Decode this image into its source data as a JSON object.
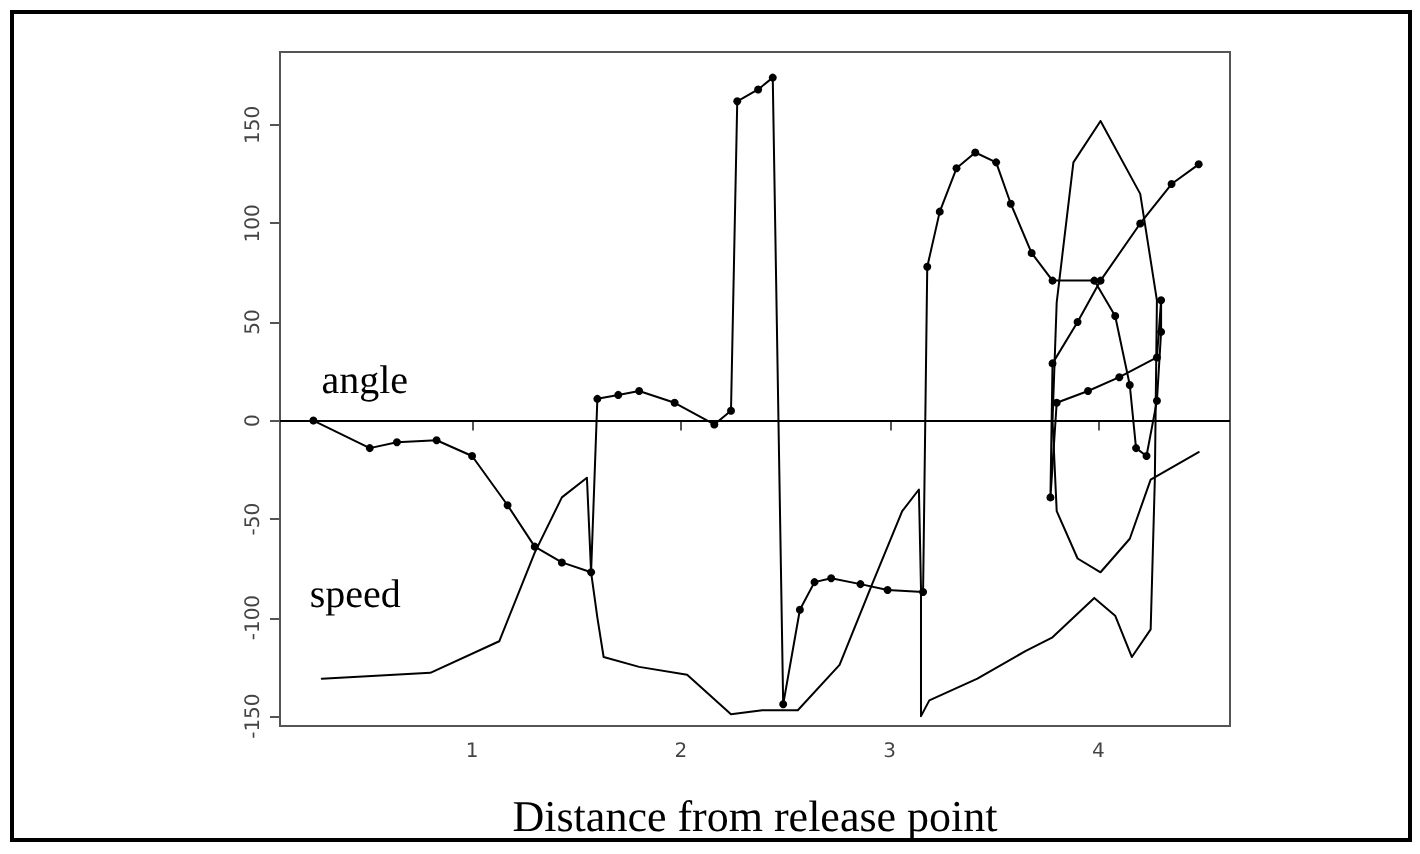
{
  "chart_data": {
    "type": "line",
    "xlabel": "Distance from release point",
    "xlim": [
      0.08,
      4.63
    ],
    "ylim": [
      -155,
      187
    ],
    "xticks": [
      1,
      2,
      3,
      4
    ],
    "yticks": [
      -150,
      -100,
      -50,
      0,
      50,
      100,
      150
    ],
    "grid": false,
    "legend": false,
    "line_style": "solid",
    "ref_lines": [
      {
        "axis": "y",
        "value": 0,
        "label": null,
        "color": "#000000"
      }
    ],
    "series": [
      {
        "name": "angle",
        "color": "#000000",
        "marker": "circle",
        "x": [
          0.24,
          0.51,
          0.64,
          0.83,
          1.0,
          1.17,
          1.3,
          1.43,
          1.57,
          1.6,
          1.7,
          1.8,
          1.97,
          2.16,
          2.24,
          2.27,
          2.37,
          2.44,
          2.49,
          2.57,
          2.64,
          2.72,
          2.86,
          2.99,
          3.16,
          3.18,
          3.24,
          3.32,
          3.41,
          3.51,
          3.58,
          3.68,
          3.78,
          3.98,
          4.08,
          4.15,
          4.18,
          4.23,
          4.28,
          4.3,
          4.3,
          4.28,
          4.1,
          3.95,
          3.8,
          3.77,
          3.78,
          3.9,
          4.01,
          4.2,
          4.35,
          4.48
        ],
        "values": [
          0,
          -14,
          -11,
          -10,
          -18,
          -43,
          -64,
          -72,
          -77,
          11,
          13,
          15,
          9,
          -2,
          5,
          162,
          168,
          174,
          -144,
          -96,
          -82,
          -80,
          -83,
          -86,
          -87,
          78,
          106,
          128,
          136,
          131,
          110,
          85,
          71,
          71,
          53,
          18,
          -14,
          -18,
          10,
          45,
          61,
          32,
          22,
          15,
          9,
          -39,
          29,
          50,
          71,
          100,
          120,
          130
        ]
      },
      {
        "name": "speed",
        "color": "#000000",
        "marker": "none",
        "x": [
          0.28,
          0.8,
          1.13,
          1.3,
          1.43,
          1.55,
          1.57,
          1.6,
          1.63,
          1.8,
          2.03,
          2.24,
          2.39,
          2.56,
          2.76,
          2.92,
          3.06,
          3.14,
          3.15,
          3.15,
          3.19,
          3.42,
          3.65,
          3.78,
          3.98,
          4.08,
          4.16,
          4.25,
          4.27,
          4.28,
          4.2,
          4.01,
          3.88,
          3.8,
          3.78,
          3.8,
          3.9,
          4.01,
          4.15,
          4.25,
          4.48
        ],
        "values": [
          -131,
          -128,
          -112,
          -67,
          -39,
          -29,
          -77,
          -100,
          -120,
          -125,
          -129,
          -149,
          -147,
          -147,
          -124,
          -82,
          -46,
          -35,
          -85,
          -150,
          -142,
          -131,
          -117,
          -110,
          -90,
          -99,
          -120,
          -106,
          -30,
          61,
          115,
          152,
          131,
          60,
          0,
          -46,
          -70,
          -77,
          -60,
          -30,
          -16
        ]
      }
    ]
  }
}
